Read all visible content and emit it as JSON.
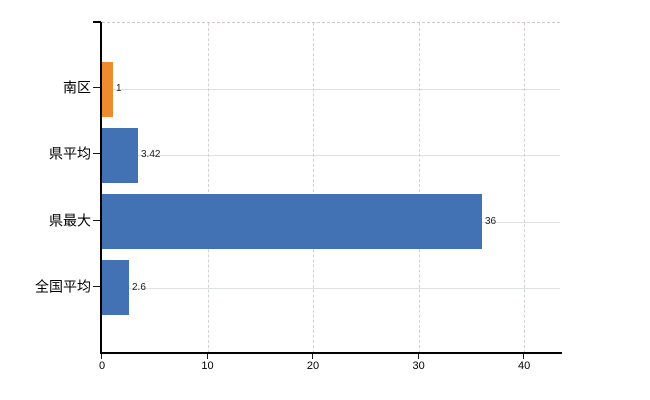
{
  "chart_data": {
    "type": "bar",
    "orientation": "horizontal",
    "categories": [
      "南区",
      "県平均",
      "県最大",
      "全国平均"
    ],
    "values": [
      1,
      3.42,
      36,
      2.6
    ],
    "value_labels": [
      "1",
      "3.42",
      "36",
      "2.6"
    ],
    "bar_colors": [
      "#EC8C2E",
      "#4272B4",
      "#4272B4",
      "#4272B4"
    ],
    "x_ticks": [
      0,
      10,
      20,
      30,
      40
    ],
    "x_tick_labels": [
      "0",
      "10",
      "20",
      "30",
      "40"
    ],
    "xlim": [
      0,
      43.4
    ],
    "legend": "none",
    "grid": {
      "horizontal": "solid, one line per category center",
      "vertical": "dashed at each x tick",
      "top_border": "dashed"
    },
    "colors": {
      "bar_default": "#4272B4",
      "bar_highlight": "#EC8C2E",
      "axis": "#000000",
      "grid_horizontal": "#dde2dc",
      "grid_vertical": "#d6d0d4",
      "label_text": "#000000",
      "background": "#ffffff"
    }
  }
}
